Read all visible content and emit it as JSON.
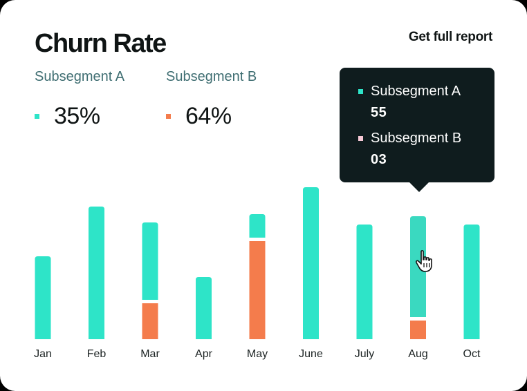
{
  "header": {
    "title": "Churn Rate",
    "report_link": "Get full report"
  },
  "kpis": [
    {
      "label": "Subsegment A",
      "value": "35%",
      "color": "#2ee4c8"
    },
    {
      "label": "Subsegment B",
      "value": "64%",
      "color": "#f47c4c"
    }
  ],
  "tooltip": {
    "items": [
      {
        "name": "Subsegment A",
        "value": "55",
        "color": "#2ee4c8"
      },
      {
        "name": "Subsegment B",
        "value": "03",
        "color": "#f6c9d6"
      }
    ]
  },
  "chart_data": {
    "type": "bar",
    "stacked": true,
    "categories": [
      "Jan",
      "Feb",
      "Mar",
      "Apr",
      "May",
      "June",
      "July",
      "Aug",
      "Oct"
    ],
    "series": [
      {
        "name": "Subsegment A",
        "color": "#2ee4c8",
        "values": [
          120,
          192,
          112,
          90,
          34,
          220,
          166,
          146,
          166
        ]
      },
      {
        "name": "Subsegment B",
        "color": "#f47c4c",
        "values": [
          0,
          0,
          52,
          0,
          142,
          0,
          0,
          27,
          0
        ]
      }
    ],
    "highlighted_category": "Aug",
    "highlight_color": "#3ad9c0",
    "ylim": [
      0,
      230
    ],
    "grid": false,
    "legend": "top-left"
  }
}
